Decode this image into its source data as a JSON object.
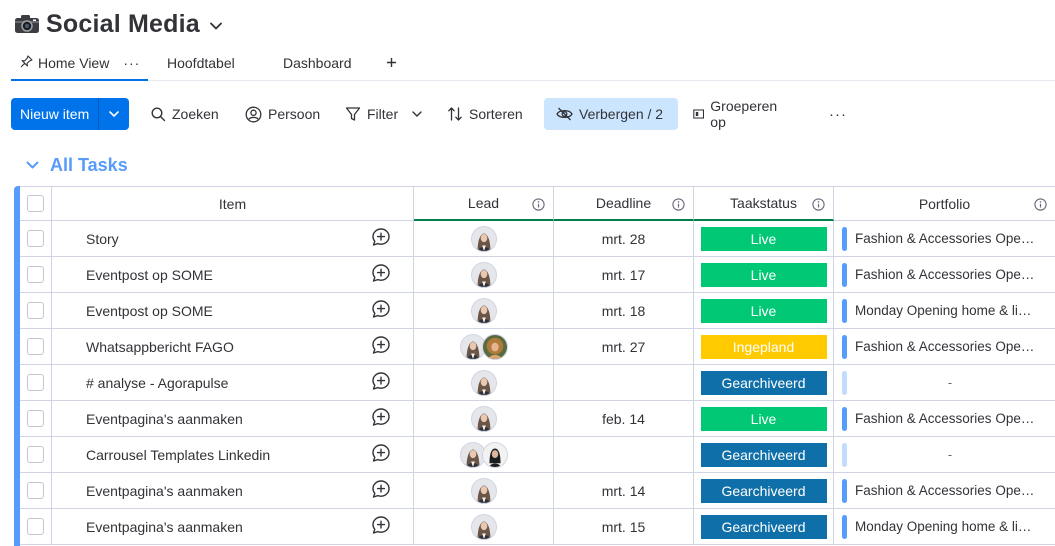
{
  "board": {
    "title": "Social Media",
    "icon": "camera-icon"
  },
  "tabs": [
    {
      "label": "Home View",
      "active": true
    },
    {
      "label": "Hoofdtabel",
      "active": false
    },
    {
      "label": "Dashboard",
      "active": false
    }
  ],
  "toolbar": {
    "new_item": "Nieuw item",
    "search": "Zoeken",
    "person": "Persoon",
    "filter": "Filter",
    "sort": "Sorteren",
    "hide": "Verbergen / 2",
    "group_by": "Groeperen op"
  },
  "group": {
    "title": "All Tasks",
    "color": "#579bfc"
  },
  "columns": {
    "item": "Item",
    "lead": "Lead",
    "deadline": "Deadline",
    "status": "Taakstatus",
    "portfolio": "Portfolio"
  },
  "status_colors": {
    "Live": "#00c875",
    "Ingepland": "#ffcb00",
    "Gearchiveerd": "#0f6fa8"
  },
  "rows": [
    {
      "item": "Story",
      "leads": [
        "avatar-woman-grey"
      ],
      "deadline": "mrt. 28",
      "status": "Live",
      "portfolio": "Fashion & Accessories Open Door",
      "portfolio_color": "#579bfc"
    },
    {
      "item": "Eventpost op SOME",
      "leads": [
        "avatar-woman-grey"
      ],
      "deadline": "mrt. 17",
      "status": "Live",
      "portfolio": "Fashion & Accessories Open Door",
      "portfolio_color": "#579bfc"
    },
    {
      "item": "Eventpost op SOME",
      "leads": [
        "avatar-woman-grey"
      ],
      "deadline": "mrt. 18",
      "status": "Live",
      "portfolio": "Monday Opening home & living",
      "portfolio_color": "#579bfc"
    },
    {
      "item": "Whatsappbericht FAGO",
      "leads": [
        "avatar-woman-grey",
        "avatar-woman-curly"
      ],
      "deadline": "mrt. 27",
      "status": "Ingepland",
      "portfolio": "Fashion & Accessories Open Door",
      "portfolio_color": "#579bfc"
    },
    {
      "item": "# analyse - Agorapulse",
      "leads": [
        "avatar-woman-grey"
      ],
      "deadline": "",
      "status": "Gearchiveerd",
      "portfolio": "-",
      "portfolio_color": "#c3dcfd"
    },
    {
      "item": "Eventpagina's aanmaken",
      "leads": [
        "avatar-woman-grey"
      ],
      "deadline": "feb. 14",
      "status": "Live",
      "portfolio": "Fashion & Accessories Open Door",
      "portfolio_color": "#579bfc"
    },
    {
      "item": "Carrousel Templates Linkedin",
      "leads": [
        "avatar-woman-grey",
        "avatar-woman-dark"
      ],
      "deadline": "",
      "status": "Gearchiveerd",
      "portfolio": "-",
      "portfolio_color": "#c3dcfd"
    },
    {
      "item": "Eventpagina's aanmaken",
      "leads": [
        "avatar-woman-grey"
      ],
      "deadline": "mrt. 14",
      "status": "Gearchiveerd",
      "portfolio": "Fashion & Accessories Open Door",
      "portfolio_color": "#579bfc"
    },
    {
      "item": "Eventpagina's aanmaken",
      "leads": [
        "avatar-woman-grey"
      ],
      "deadline": "mrt. 15",
      "status": "Gearchiveerd",
      "portfolio": "Monday Opening home & living",
      "portfolio_color": "#579bfc"
    }
  ]
}
